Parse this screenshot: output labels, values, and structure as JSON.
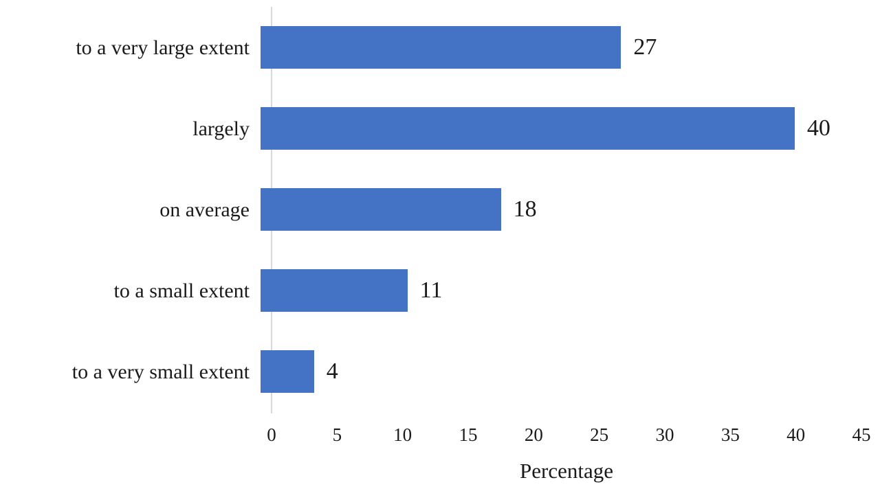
{
  "chart_data": {
    "type": "bar",
    "orientation": "horizontal",
    "title": "",
    "categories": [
      "to a very large extent",
      "largely",
      "on average",
      "to a small extent",
      "to a very small extent"
    ],
    "values": [
      27,
      40,
      18,
      11,
      4
    ],
    "xlabel": "Percentage",
    "ylabel": "",
    "xlim": [
      0,
      45
    ],
    "x_ticks": [
      0,
      5,
      10,
      15,
      20,
      25,
      30,
      35,
      40,
      45
    ],
    "data_labels": [
      27,
      40,
      18,
      11,
      4
    ],
    "bar_color": "#4472C4",
    "axis_line_color": "#D9D9D9",
    "text_color": "#1A1A1A",
    "grid": "off",
    "legend": "none"
  }
}
